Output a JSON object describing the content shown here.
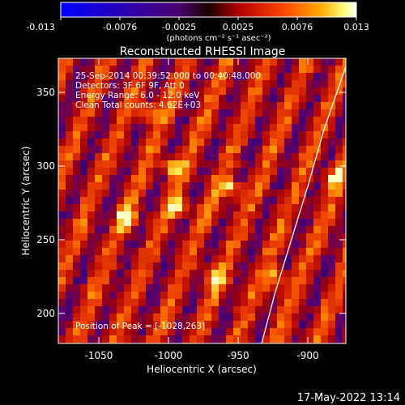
{
  "colorbar": {
    "tick_labels": [
      "-0.013",
      "-0.0076",
      "-0.0025",
      "0.0025",
      "0.0076",
      "0.013"
    ],
    "unit_label": "(photons cm⁻² s⁻¹ asec⁻²)"
  },
  "title": "Reconstructed RHESSI Image",
  "info": {
    "time_range": "25-Sep-2014 00:39:52.000 to 00:40:48.000",
    "detectors": "Detectors: 3F 6F 9F, Att 0",
    "energy": "Energy Range: 6.0 - 12.0 keV",
    "method": "Clean    Total counts: 4.62E+03",
    "peak": "Position of Peak = [-1028,263]"
  },
  "axes": {
    "x_label": "Heliocentric X (arcsec)",
    "y_label": "Heliocentric Y (arcsec)",
    "x_ticks": [
      "-1050",
      "-1000",
      "-950",
      "-900"
    ],
    "y_ticks": [
      "350",
      "300",
      "250",
      "200"
    ],
    "x_range": [
      -1075,
      -880
    ],
    "y_range": [
      178,
      372
    ]
  },
  "footer": {
    "timestamp": "17-May-2022 13:14"
  },
  "colors": {
    "background": "#000000",
    "text": "#ffffff",
    "limb": "#ffffff"
  }
}
